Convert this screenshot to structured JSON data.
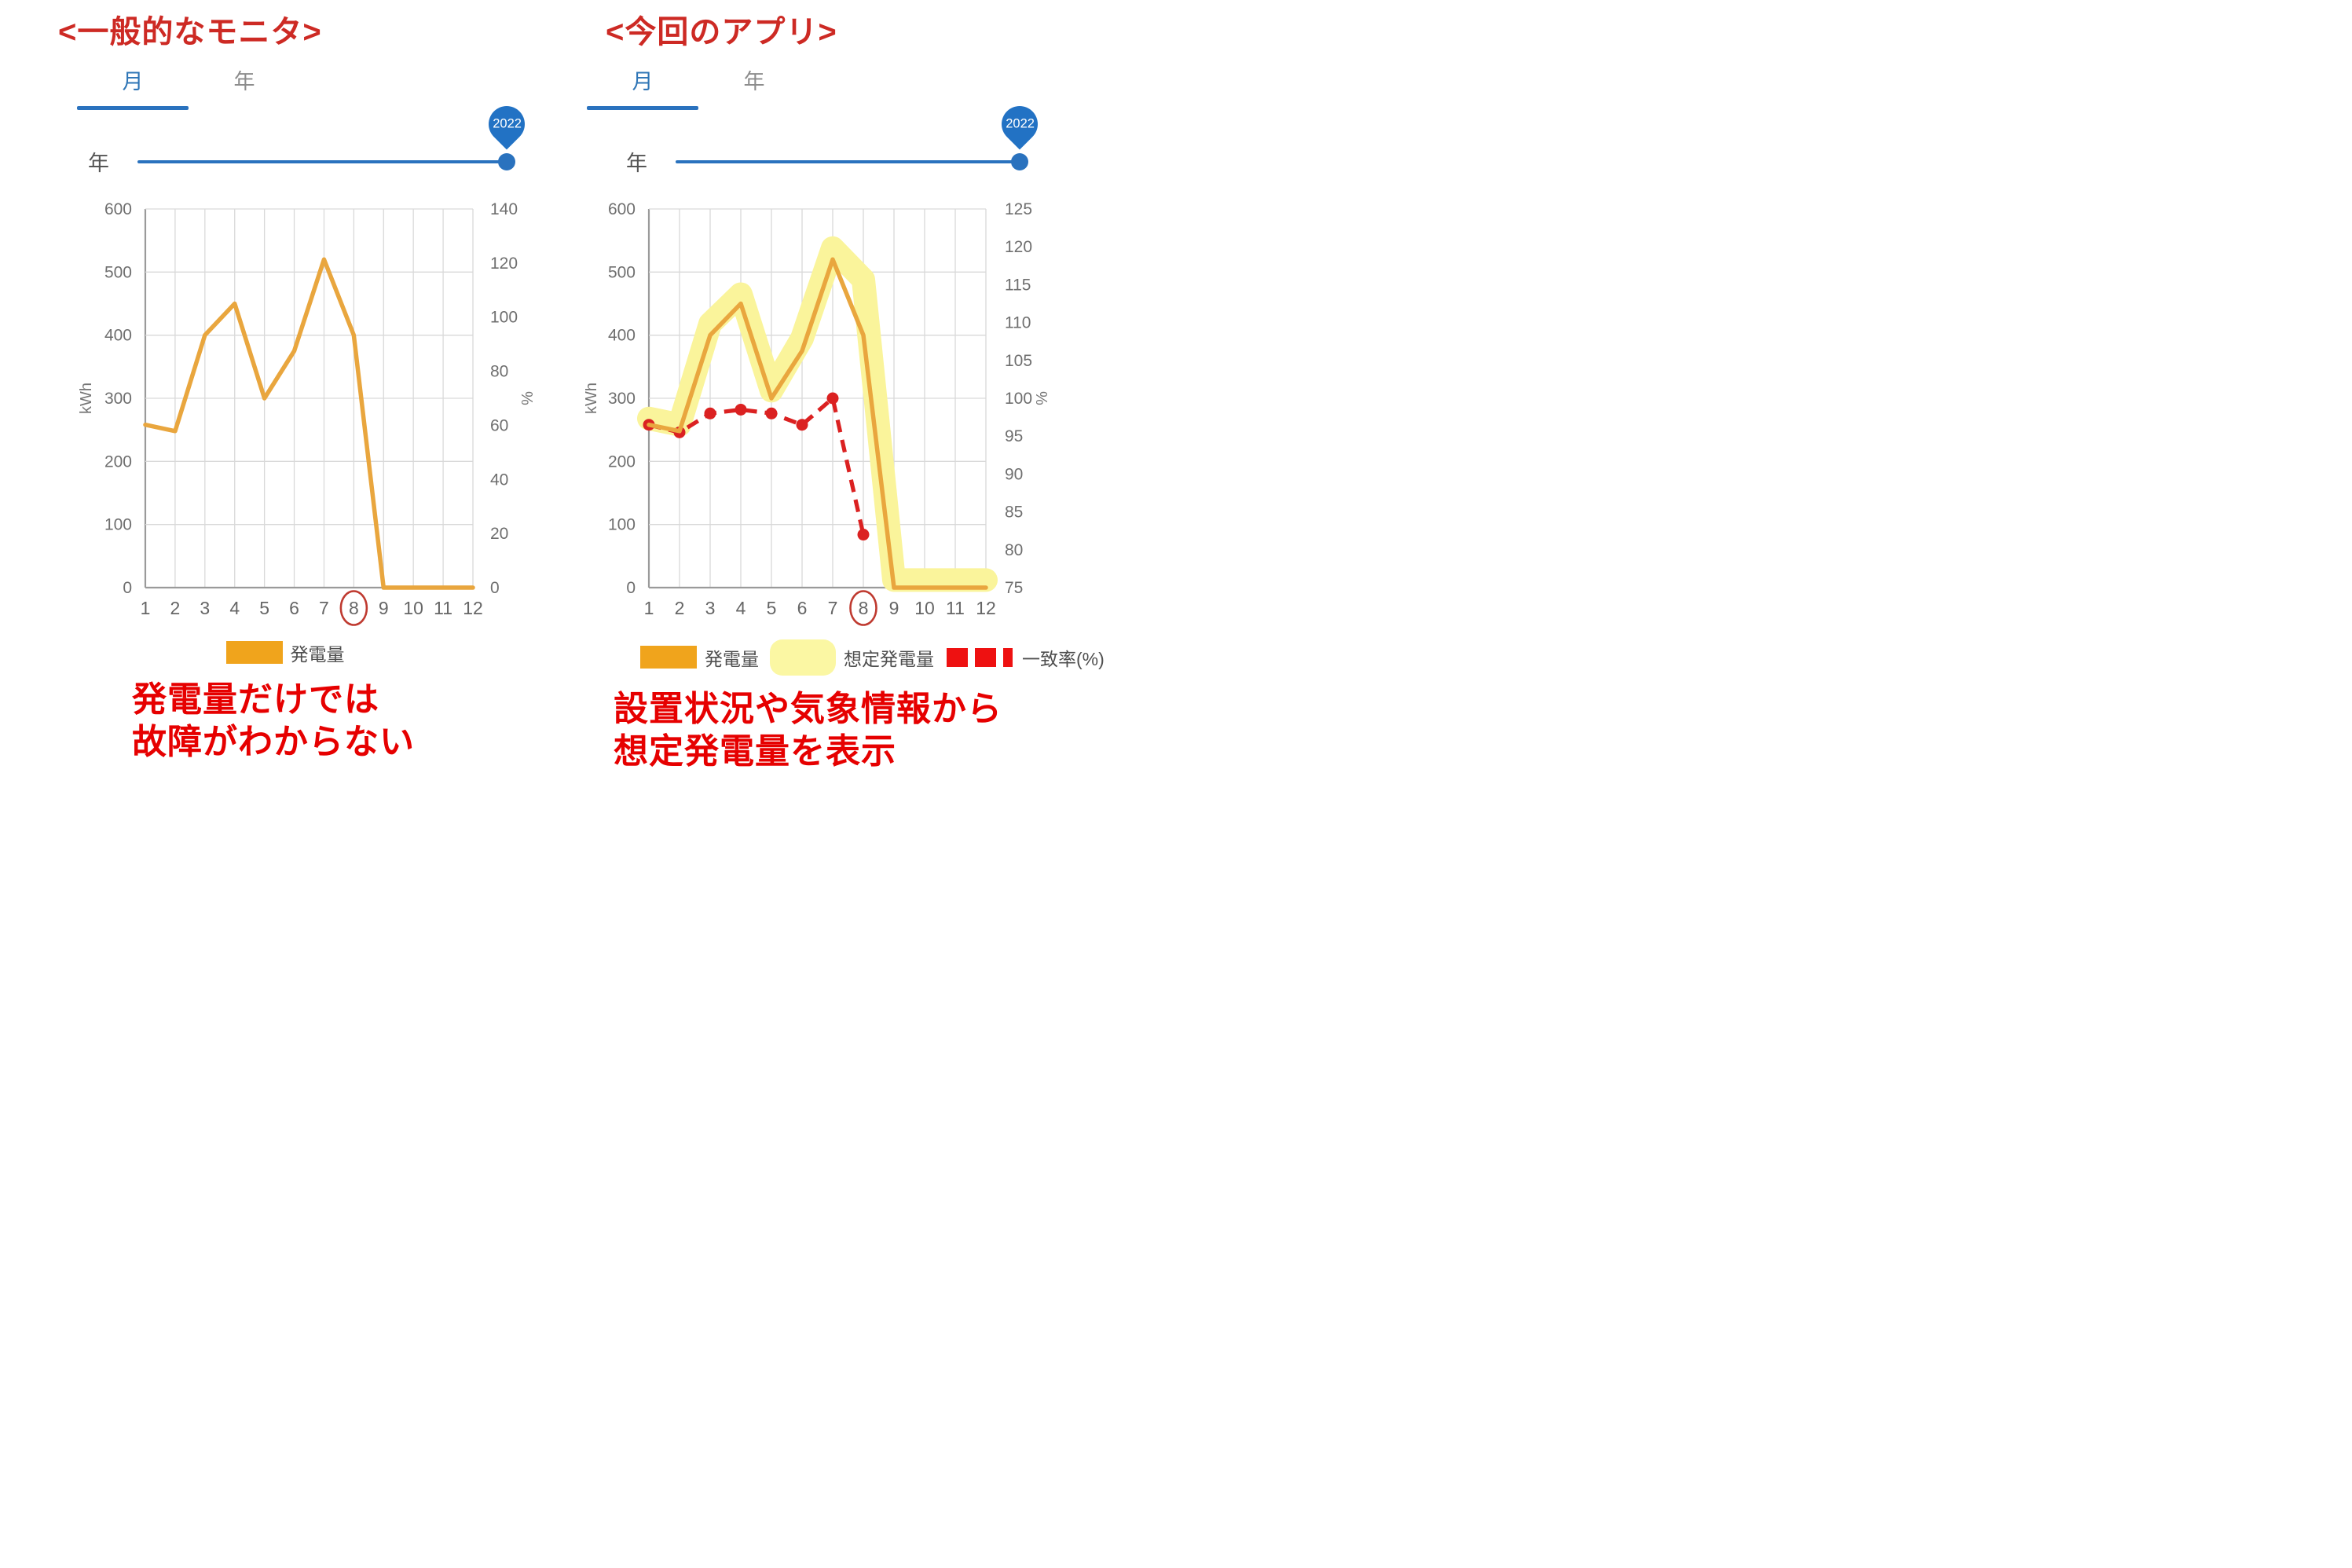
{
  "panels": [
    {
      "title": "<一般的なモニタ>",
      "tabs": [
        {
          "label": "月",
          "active": true
        },
        {
          "label": "年",
          "active": false
        }
      ],
      "slider": {
        "label": "年",
        "value": "2022"
      },
      "caption_lines": [
        "発電量だけでは",
        "故障がわからない"
      ]
    },
    {
      "title": "<今回のアプリ>",
      "tabs": [
        {
          "label": "月",
          "active": true
        },
        {
          "label": "年",
          "active": false
        }
      ],
      "slider": {
        "label": "年",
        "value": "2022"
      },
      "caption_lines": [
        "設置状況や気象情報から",
        "想定発電量を表示"
      ]
    }
  ],
  "chart_data": [
    {
      "type": "line",
      "x": [
        1,
        2,
        3,
        4,
        5,
        6,
        7,
        8,
        9,
        10,
        11,
        12
      ],
      "xlabel": "",
      "highlight_month": 8,
      "left_axis": {
        "label": "kWh",
        "min": 0,
        "max": 600,
        "ticks": [
          0,
          100,
          200,
          300,
          400,
          500,
          600
        ]
      },
      "right_axis": {
        "label": "%",
        "min": 0,
        "max": 140,
        "ticks": [
          0,
          20,
          40,
          60,
          80,
          100,
          120,
          140
        ]
      },
      "series": [
        {
          "name": "発電量",
          "axis": "left",
          "style": "solid",
          "color": "#E9A63E",
          "values": [
            258,
            248,
            400,
            450,
            300,
            375,
            520,
            400,
            0,
            0,
            0,
            0
          ]
        }
      ],
      "legend": [
        {
          "label": "発電量",
          "swatch": "solid-rect",
          "color": "#F0A41C"
        }
      ]
    },
    {
      "type": "line",
      "x": [
        1,
        2,
        3,
        4,
        5,
        6,
        7,
        8,
        9,
        10,
        11,
        12
      ],
      "xlabel": "",
      "highlight_month": 8,
      "left_axis": {
        "label": "kWh",
        "min": 0,
        "max": 600,
        "ticks": [
          0,
          100,
          200,
          300,
          400,
          500,
          600
        ]
      },
      "right_axis": {
        "label": "%",
        "min": 75,
        "max": 125,
        "ticks": [
          75,
          80,
          85,
          90,
          95,
          100,
          105,
          110,
          115,
          120,
          125
        ]
      },
      "series": [
        {
          "name": "想定発電量",
          "axis": "left",
          "style": "band",
          "color": "#FAF49B",
          "values": [
            268,
            258,
            418,
            465,
            312,
            395,
            538,
            488,
            12,
            12,
            12,
            12
          ]
        },
        {
          "name": "一致率(%)",
          "axis": "right",
          "style": "dashed-dots",
          "color": "#DB2121",
          "values": [
            96.5,
            95.5,
            98,
            98.5,
            98,
            96.5,
            100,
            82,
            null,
            null,
            null,
            null
          ]
        },
        {
          "name": "発電量",
          "axis": "left",
          "style": "solid",
          "color": "#E9A63E",
          "values": [
            258,
            248,
            400,
            450,
            300,
            375,
            520,
            400,
            0,
            0,
            0,
            0
          ]
        }
      ],
      "legend": [
        {
          "label": "発電量",
          "swatch": "solid-rect",
          "color": "#F0A41C"
        },
        {
          "label": "想定発電量",
          "swatch": "band-rect",
          "color": "#FBF7A3"
        },
        {
          "label": "一致率(%)",
          "swatch": "dash-line",
          "color": "#EE1111"
        }
      ]
    }
  ],
  "colors": {
    "accent_blue": "#2A72BE",
    "tab_active_blue": "#2E75B6",
    "title_red": "#CD2A24",
    "caption_red": "#E60000",
    "line_orange": "#E9A63E",
    "band_yellow": "#FAF49B",
    "dash_red": "#DB2121",
    "highlight_circle_red": "#BF3A30",
    "grid_gray": "#D9D9D9",
    "axis_gray": "#9A9A9A"
  }
}
